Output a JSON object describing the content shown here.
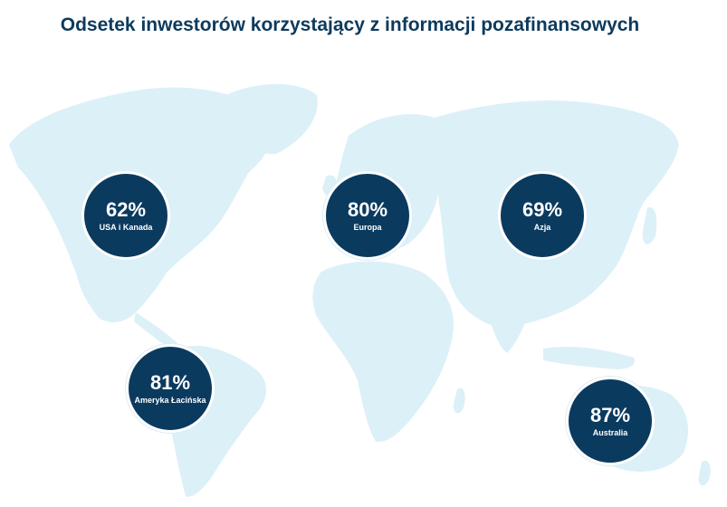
{
  "title": "Odsetek inwestorów korzystający z informacji pozafinansowych",
  "colors": {
    "navy": "#0b3a5f",
    "map": "#dcf0f8",
    "title": "#0d3a5c"
  },
  "regions": [
    {
      "percent": "62%",
      "label": "USA i Kanada"
    },
    {
      "percent": "80%",
      "label": "Europa"
    },
    {
      "percent": "69%",
      "label": "Azja"
    },
    {
      "percent": "81%",
      "label": "Ameryka Łacińska"
    },
    {
      "percent": "87%",
      "label": "Australia"
    }
  ]
}
